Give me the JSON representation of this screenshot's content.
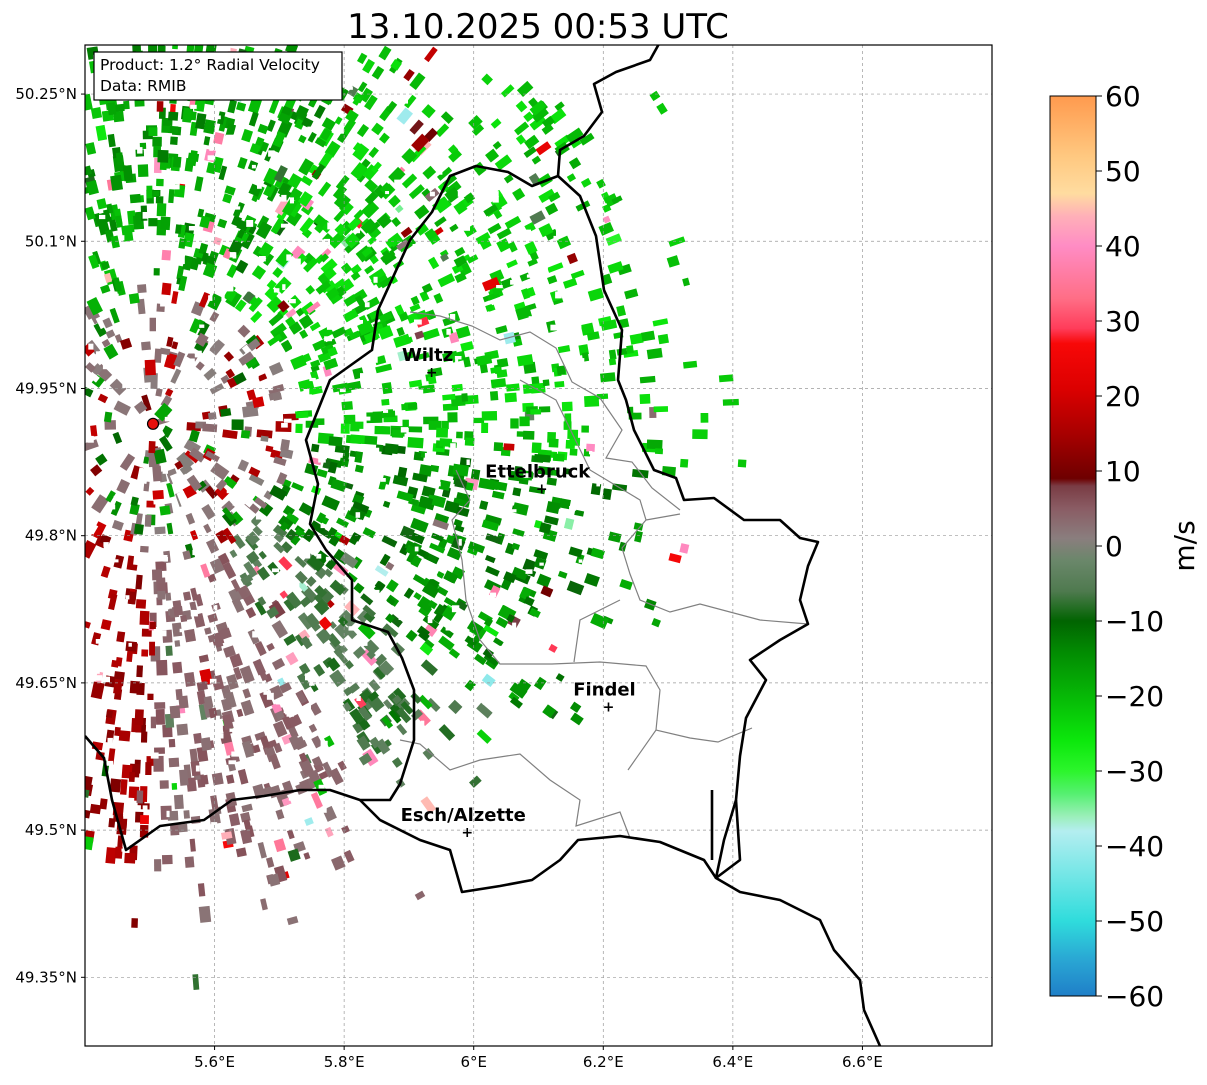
{
  "title": "13.10.2025 00:53 UTC",
  "info_box": {
    "product_line": "Product: 1.2° Radial Velocity",
    "data_line": "Data: RMIB"
  },
  "map": {
    "lon_range": [
      5.4,
      6.8
    ],
    "lat_range": [
      49.28,
      50.3
    ],
    "lon_ticks": [
      {
        "value": 5.6,
        "label": "5.6°E"
      },
      {
        "value": 5.8,
        "label": "5.8°E"
      },
      {
        "value": 6.0,
        "label": "6°E"
      },
      {
        "value": 6.2,
        "label": "6.2°E"
      },
      {
        "value": 6.4,
        "label": "6.4°E"
      },
      {
        "value": 6.6,
        "label": "6.6°E"
      }
    ],
    "lat_ticks": [
      {
        "value": 50.25,
        "label": "50.25°N"
      },
      {
        "value": 50.1,
        "label": "50.1°N"
      },
      {
        "value": 49.95,
        "label": "49.95°N"
      },
      {
        "value": 49.8,
        "label": "49.8°N"
      },
      {
        "value": 49.65,
        "label": "49.65°N"
      },
      {
        "value": 49.5,
        "label": "49.5°N"
      },
      {
        "value": 49.35,
        "label": "49.35°N"
      }
    ],
    "radar_site": {
      "lon": 5.505,
      "lat": 49.914
    },
    "cities": [
      {
        "name": "Wiltz",
        "lon": 5.935,
        "lat": 49.967
      },
      {
        "name": "Ettelbruck",
        "lon": 6.105,
        "lat": 49.848
      },
      {
        "name": "Findel",
        "lon": 6.208,
        "lat": 49.626
      },
      {
        "name": "Esch/Alzette",
        "lon": 5.99,
        "lat": 49.498
      }
    ]
  },
  "colorbar": {
    "unit": "m/s",
    "min": -60,
    "max": 60,
    "ticks": [
      {
        "value": 60,
        "label": "60"
      },
      {
        "value": 50,
        "label": "50"
      },
      {
        "value": 40,
        "label": "40"
      },
      {
        "value": 30,
        "label": "30"
      },
      {
        "value": 20,
        "label": "20"
      },
      {
        "value": 10,
        "label": "10"
      },
      {
        "value": 0,
        "label": "0"
      },
      {
        "value": -10,
        "label": "−10"
      },
      {
        "value": -20,
        "label": "−20"
      },
      {
        "value": -30,
        "label": "−30"
      },
      {
        "value": -40,
        "label": "−40"
      },
      {
        "value": -50,
        "label": "−50"
      },
      {
        "value": -60,
        "label": "−60"
      }
    ],
    "color_stops": [
      {
        "value": -60,
        "color": "#1f7fc8"
      },
      {
        "value": -55,
        "color": "#2aa8d4"
      },
      {
        "value": -50,
        "color": "#2fdcdc"
      },
      {
        "value": -44,
        "color": "#72e6e6"
      },
      {
        "value": -38,
        "color": "#b4eef0"
      },
      {
        "value": -36,
        "color": "#9aefb8"
      },
      {
        "value": -33,
        "color": "#55f070"
      },
      {
        "value": -30,
        "color": "#2cf52c"
      },
      {
        "value": -26,
        "color": "#0ce80c"
      },
      {
        "value": -20,
        "color": "#06b806"
      },
      {
        "value": -14,
        "color": "#028a02"
      },
      {
        "value": -10,
        "color": "#016401"
      },
      {
        "value": -6,
        "color": "#4f7a4f"
      },
      {
        "value": -2,
        "color": "#6a876a"
      },
      {
        "value": 1,
        "color": "#8a7e7e"
      },
      {
        "value": 5,
        "color": "#8a5c64"
      },
      {
        "value": 8,
        "color": "#7a3c44"
      },
      {
        "value": 9,
        "color": "#6e0000"
      },
      {
        "value": 15,
        "color": "#a80000"
      },
      {
        "value": 21,
        "color": "#dc0000"
      },
      {
        "value": 27,
        "color": "#f80808"
      },
      {
        "value": 29,
        "color": "#ff3c5a"
      },
      {
        "value": 33,
        "color": "#ff6e86"
      },
      {
        "value": 40,
        "color": "#ff8cc4"
      },
      {
        "value": 44,
        "color": "#ffb0b8"
      },
      {
        "value": 47,
        "color": "#ffdca0"
      },
      {
        "value": 52,
        "color": "#ffc880"
      },
      {
        "value": 60,
        "color": "#ff9a4e"
      }
    ]
  }
}
